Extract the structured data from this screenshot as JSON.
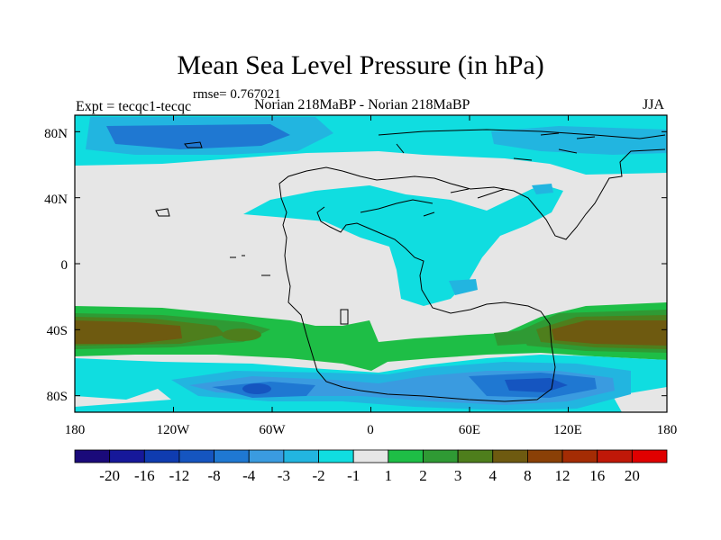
{
  "title": "Mean Sea Level Pressure (in hPa)",
  "rmse_label": "rmse= 0.767021",
  "expt_label": "Expt = tecqc1-tecqc",
  "runs_label": "Norian 218MaBP - Norian 218MaBP",
  "season_label": "JJA",
  "x_ticks": [
    "180",
    "120W",
    "60W",
    "0",
    "60E",
    "120E",
    "180"
  ],
  "y_ticks": [
    "80N",
    "40N",
    "0",
    "40S",
    "80S"
  ],
  "colorbar": {
    "labels": [
      "-20",
      "-16",
      "-12",
      "-8",
      "-4",
      "-3",
      "-2",
      "-1",
      "1",
      "2",
      "3",
      "4",
      "8",
      "12",
      "16",
      "20"
    ],
    "colors": [
      "#1a0a7a",
      "#16189a",
      "#0f3cb0",
      "#1555c0",
      "#1f78d2",
      "#3a9be0",
      "#22b5e0",
      "#10dde0",
      "#e6e6e6",
      "#1ebe46",
      "#2f9a34",
      "#4e7e1c",
      "#6e5a10",
      "#8a4006",
      "#a42c04",
      "#c01808",
      "#e00000"
    ]
  },
  "chart_data": {
    "type": "heatmap",
    "title": "Mean Sea Level Pressure (in hPa)",
    "variable": "MSLP difference",
    "units": "hPa",
    "season": "JJA",
    "xlim": [
      -180,
      180
    ],
    "ylim": [
      -90,
      90
    ],
    "x_ticks": [
      -180,
      -120,
      -60,
      0,
      60,
      120,
      180
    ],
    "y_ticks": [
      80,
      40,
      0,
      -40,
      -80
    ],
    "levels": [
      -20,
      -16,
      -12,
      -8,
      -4,
      -3,
      -2,
      -1,
      1,
      2,
      3,
      4,
      8,
      12,
      16,
      20
    ],
    "rmse": 0.767021
  }
}
